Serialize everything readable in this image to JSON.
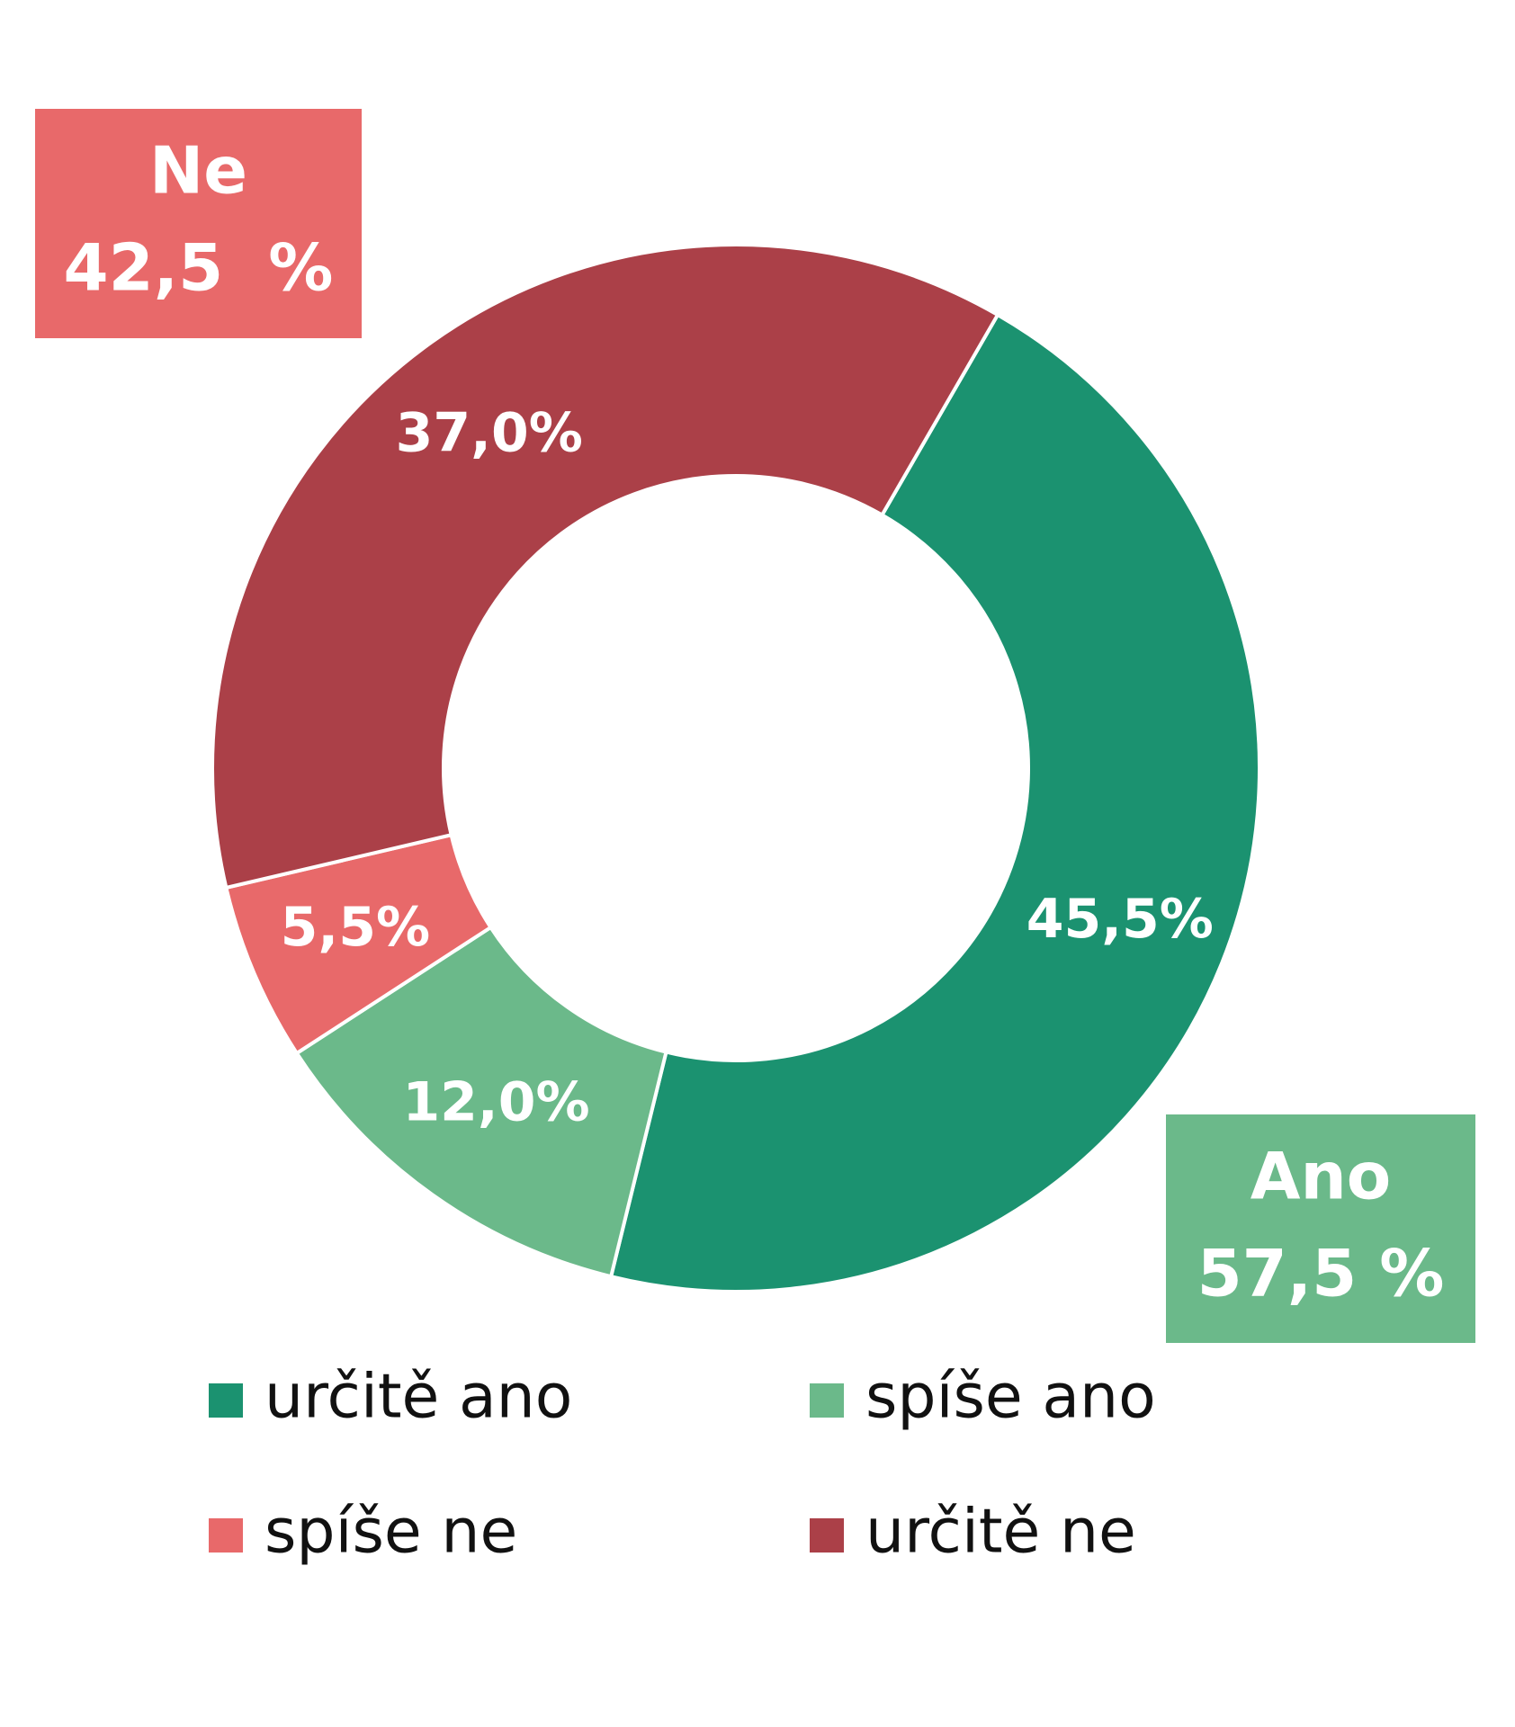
{
  "chart_data": {
    "type": "donut",
    "categories": [
      "určitě ano",
      "spíše ano",
      "spíše ne",
      "určitě ne"
    ],
    "values": [
      45.5,
      12.0,
      5.5,
      37.0
    ],
    "value_labels": [
      "45,5%",
      "12,0%",
      "5,5%",
      "37,0%"
    ],
    "colors": [
      "#1b9270",
      "#6bb98a",
      "#e8696a",
      "#ab4048"
    ],
    "start_angle": 30,
    "annotations": [
      {
        "title": "Ne",
        "value": 42.5,
        "label": "42,5  %",
        "color": "#e8696a"
      },
      {
        "title": "Ano",
        "value": 57.5,
        "label": "57,5 %",
        "color": "#6bb98a"
      }
    ]
  }
}
